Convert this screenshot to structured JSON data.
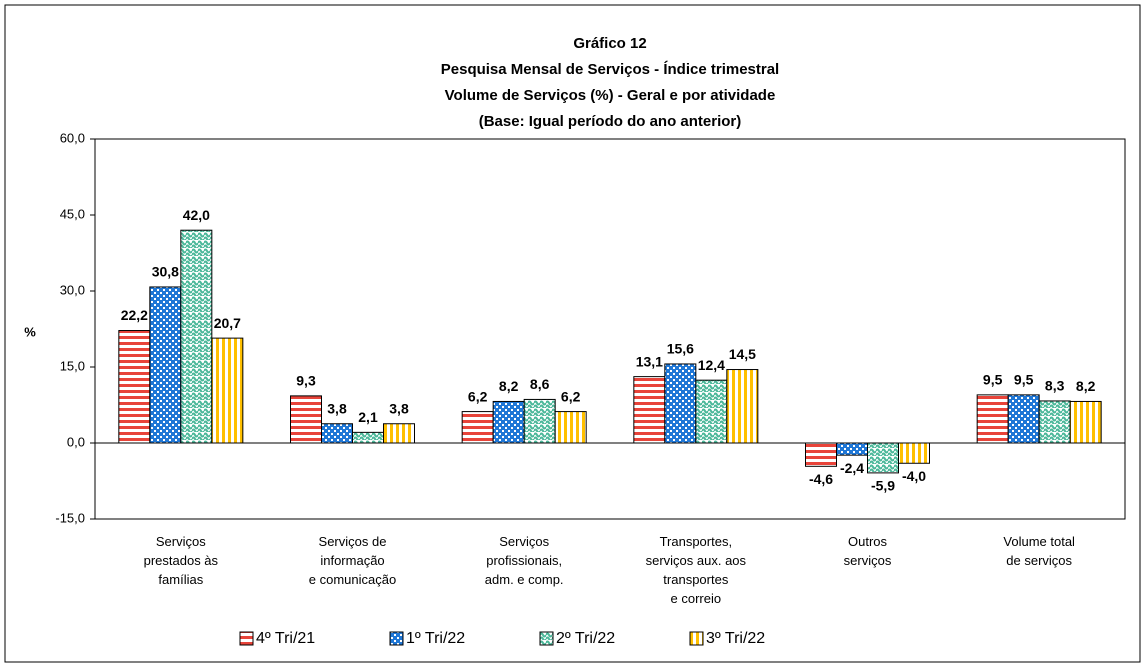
{
  "chart_data": {
    "type": "bar",
    "title": [
      "Gráfico 12",
      "Pesquisa Mensal de Serviços  - Índice trimestral",
      "Volume de Serviços (%) - Geral e por atividade",
      "(Base: Igual período do ano anterior)"
    ],
    "ylabel": "%",
    "categories": [
      "Serviços\nprestados às\nfamílias",
      "Serviços de\ninformação\ne comunicação",
      "Serviços\nprofissionais,\nadm. e comp.",
      "Transportes,\nserviços aux. aos\ntransportes\ne correio",
      "Outros\nserviços",
      "Volume total\nde serviços"
    ],
    "series": [
      {
        "name": "4º Tri/21",
        "color": "#e8443a",
        "values": [
          22.2,
          9.3,
          6.2,
          13.1,
          -4.6,
          9.5
        ],
        "value_labels": [
          "22,2",
          "9,3",
          "6,2",
          "13,1",
          "-4,6",
          "9,5"
        ]
      },
      {
        "name": "1º Tri/22",
        "color": "#1f77d6",
        "values": [
          30.8,
          3.8,
          8.2,
          15.6,
          -2.4,
          9.5
        ],
        "value_labels": [
          "30,8",
          "3,8",
          "8,2",
          "15,6",
          "-2,4",
          "9,5"
        ]
      },
      {
        "name": "2º Tri/22",
        "color": "#4cb89a",
        "values": [
          42.0,
          2.1,
          8.6,
          12.4,
          -5.9,
          8.3
        ],
        "value_labels": [
          "42,0",
          "2,1",
          "8,6",
          "12,4",
          "-5,9",
          "8,3"
        ]
      },
      {
        "name": "3º Tri/22",
        "color": "#ffc000",
        "values": [
          20.7,
          3.8,
          6.2,
          14.5,
          -4.0,
          8.2
        ],
        "value_labels": [
          "20,7",
          "3,8",
          "6,2",
          "14,5",
          "-4,0",
          "8,2"
        ]
      }
    ],
    "ylim": [
      -15,
      60
    ],
    "yticks": [
      {
        "value": -15,
        "label": "-15,0"
      },
      {
        "value": 0,
        "label": "0,0"
      },
      {
        "value": 15,
        "label": "15,0"
      },
      {
        "value": 30,
        "label": "30,0"
      },
      {
        "value": 45,
        "label": "45,0"
      },
      {
        "value": 60,
        "label": "60,0"
      }
    ],
    "grid": false,
    "legend": "bottom"
  }
}
